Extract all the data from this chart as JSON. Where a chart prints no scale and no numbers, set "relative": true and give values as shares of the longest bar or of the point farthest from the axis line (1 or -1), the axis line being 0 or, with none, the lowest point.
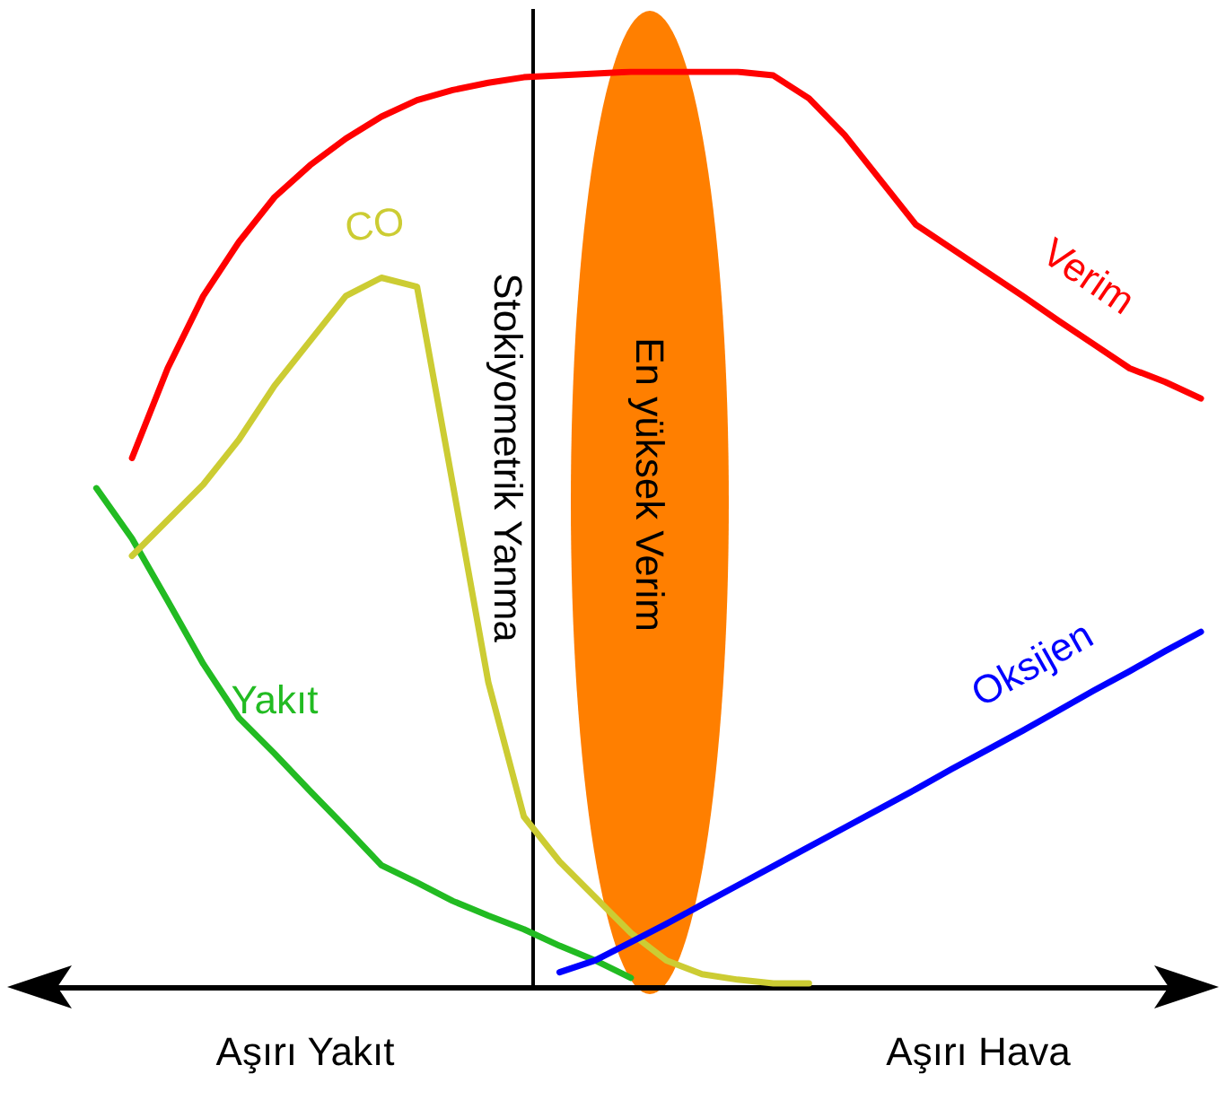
{
  "chart_data": {
    "type": "line",
    "relative": true,
    "marker": "none",
    "legend": false,
    "grid": false,
    "categories": [
      null,
      null,
      null,
      null,
      null,
      null,
      null,
      null,
      null,
      null,
      null,
      null,
      null,
      null,
      null,
      null,
      null,
      null,
      null,
      null,
      null,
      null,
      null,
      null,
      null,
      null,
      null,
      null,
      null,
      null,
      null,
      null,
      null,
      null
    ],
    "series": [
      {
        "name": "Verim",
        "color": "#ff0000",
        "values": [
          null,
          null,
          null,
          0.578,
          0.676,
          0.755,
          0.814,
          0.863,
          0.898,
          0.927,
          0.951,
          0.969,
          0.98,
          0.988,
          0.994,
          0.996,
          0.998,
          1,
          1,
          1,
          1,
          0.996,
          0.971,
          0.931,
          0.882,
          0.833,
          0.807,
          0.781,
          0.755,
          0.728,
          0.702,
          0.676,
          0.661,
          0.643
        ]
      },
      {
        "name": "Yakıt",
        "color": "#22bb22",
        "values": [
          null,
          null,
          0.545,
          0.49,
          0.422,
          0.353,
          0.294,
          0.255,
          0.214,
          0.174,
          0.133,
          0.114,
          0.094,
          0.078,
          0.063,
          0.045,
          0.029,
          0.01,
          null,
          null,
          null,
          null,
          null,
          null,
          null,
          null,
          null,
          null,
          null,
          null,
          null,
          null,
          null,
          null
        ]
      },
      {
        "name": "CO",
        "color": "#cccc33",
        "values": [
          null,
          null,
          null,
          0.471,
          0.51,
          0.549,
          0.598,
          0.657,
          0.706,
          0.755,
          0.775,
          0.765,
          0.55,
          0.333,
          0.186,
          0.137,
          0.098,
          0.059,
          0.029,
          0.014,
          0.008,
          0.004,
          0.004,
          null,
          null,
          null,
          null,
          null,
          null,
          null,
          null,
          null,
          null,
          null
        ]
      },
      {
        "name": "Oksijen",
        "color": "#0000ff",
        "values": [
          null,
          null,
          null,
          null,
          null,
          null,
          null,
          null,
          null,
          null,
          null,
          null,
          null,
          null,
          null,
          0.016,
          0.029,
          0.049,
          0.069,
          0.09,
          0.111,
          0.132,
          0.153,
          0.174,
          0.195,
          0.216,
          0.238,
          0.259,
          0.28,
          0.302,
          0.324,
          0.345,
          0.367,
          0.388
        ]
      }
    ],
    "annotations": [
      "Stokiyometrik Yanma",
      "En yüksek Verim",
      "Aşırı Yakıt",
      "Aşırı Hava"
    ]
  }
}
